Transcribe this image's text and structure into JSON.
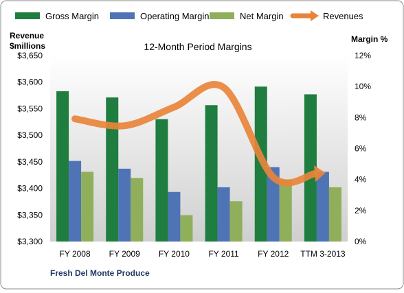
{
  "chart_data": {
    "type": "bar",
    "title": "12-Month Period Margins",
    "company": "Fresh Del Monte Produce",
    "left_axis_title": [
      "Revenue",
      "$millions"
    ],
    "right_axis_title": "Margin %",
    "categories": [
      "FY 2008",
      "FY 2009",
      "FY 2010",
      "FY 2011",
      "FY 2012",
      "TTM 3-2013"
    ],
    "left_ticks": [
      "$3,650",
      "$3,600",
      "$3,550",
      "$3,500",
      "$3,450",
      "$3,400",
      "$3,350",
      "$3,300"
    ],
    "right_ticks": [
      "12%",
      "10%",
      "8%",
      "6%",
      "4%",
      "2%",
      "0%"
    ],
    "ylim_revenue": [
      3300,
      3650
    ],
    "ylim_margin": [
      0,
      12
    ],
    "legend_position": "top",
    "grid": false,
    "series": [
      {
        "name": "Gross Margin",
        "kind": "bar",
        "axis": "right",
        "color": "#1e7d3f",
        "values": [
          9.7,
          9.3,
          7.9,
          8.8,
          10.0,
          9.5
        ]
      },
      {
        "name": "Operating Margin",
        "kind": "bar",
        "axis": "right",
        "color": "#4f74b5",
        "values": [
          5.2,
          4.7,
          3.2,
          3.5,
          4.8,
          4.5
        ]
      },
      {
        "name": "Net Margin",
        "kind": "bar",
        "axis": "right",
        "color": "#8faf5b",
        "values": [
          4.5,
          4.1,
          1.7,
          2.6,
          4.0,
          3.5
        ]
      },
      {
        "name": "Revenues",
        "kind": "line",
        "axis": "left",
        "color": "#e8843a",
        "values": [
          3531,
          3518,
          3553,
          3590,
          3421,
          3429
        ]
      }
    ]
  }
}
